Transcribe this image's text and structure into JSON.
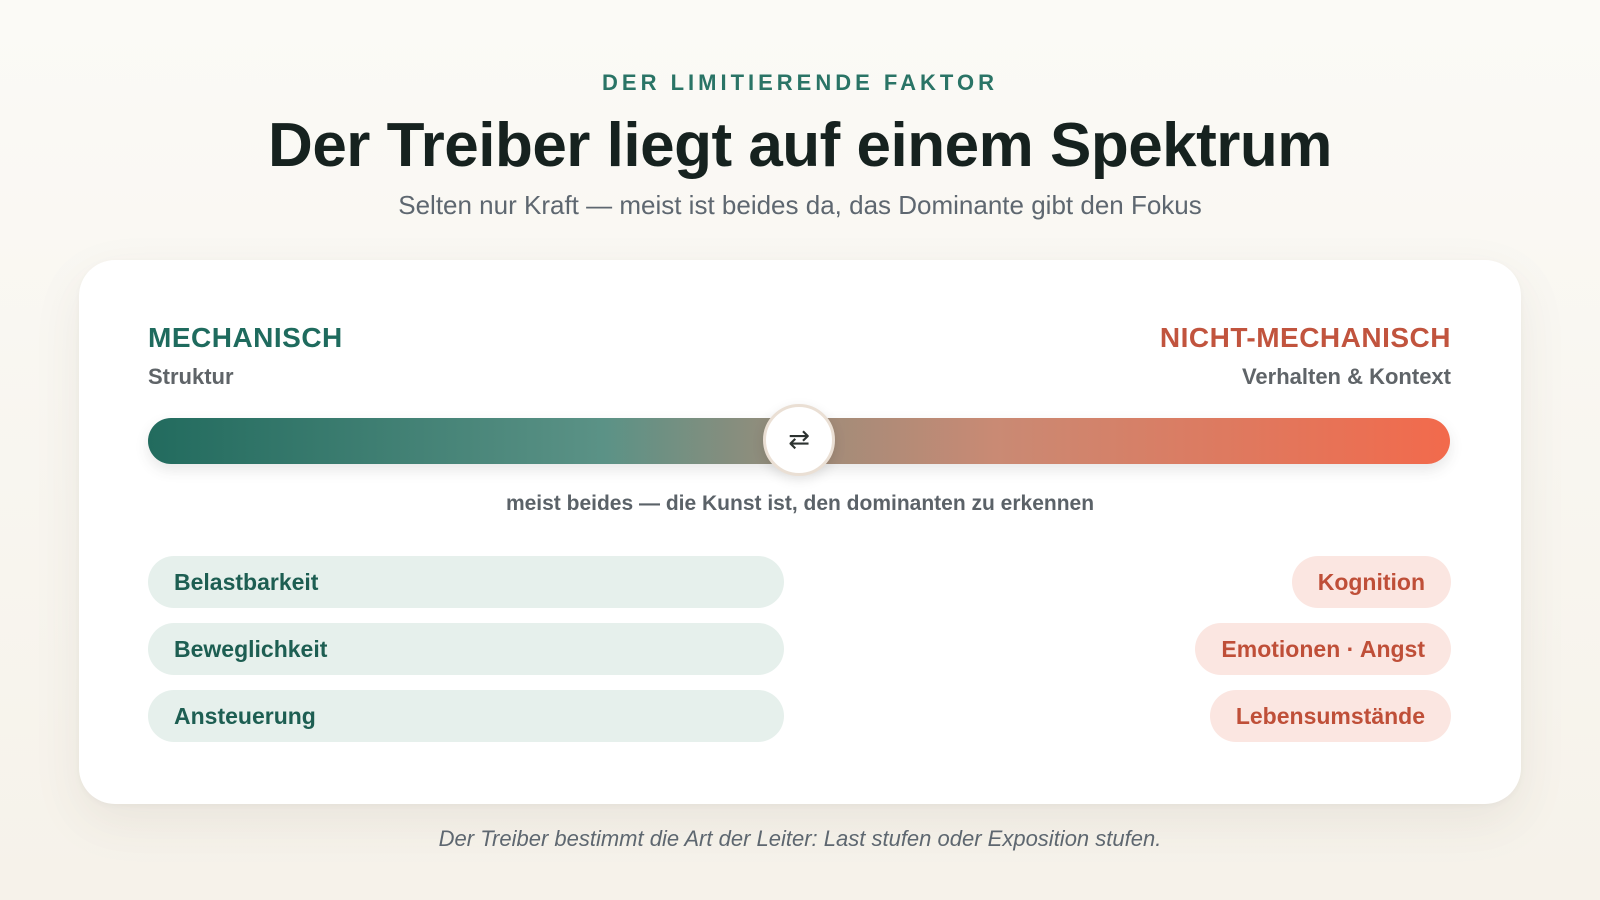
{
  "header": {
    "eyebrow": "DER LIMITIERENDE FAKTOR",
    "title": "Der Treiber liegt auf einem Spektrum",
    "subtitle": "Selten nur Kraft — meist ist beides da, das Dominante gibt den Fokus"
  },
  "spectrum": {
    "left": {
      "title": "MECHANISCH",
      "subtitle": "Struktur",
      "color": "#1f6b5e"
    },
    "right": {
      "title": "NICHT-MECHANISCH",
      "subtitle": "Verhalten & Kontext",
      "color": "#c1543e"
    },
    "knob_icon": "swap-arrows-icon",
    "knob_glyph": "⇄",
    "caption": "meist beides — die Kunst ist, den dominanten zu erkennen"
  },
  "left_items": [
    {
      "label": "Belastbarkeit"
    },
    {
      "label": "Beweglichkeit"
    },
    {
      "label": "Ansteuerung"
    }
  ],
  "right_items": [
    {
      "label": "Kognition"
    },
    {
      "label": "Emotionen · Angst"
    },
    {
      "label": "Lebensumstände"
    }
  ],
  "footer": "Der Treiber bestimmt die Art der Leiter: Last stufen oder Exposition stufen."
}
